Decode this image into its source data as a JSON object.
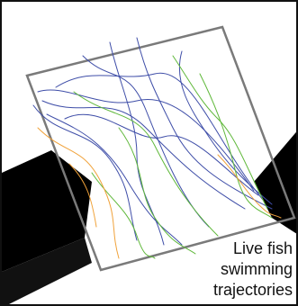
{
  "caption": {
    "line1": "Live fish",
    "line2": "swimming",
    "line3": "trajectories"
  },
  "colors": {
    "background": "#ffffff",
    "border": "#111111",
    "tank_outline": "#7a7a7a",
    "wall": "#000000",
    "trajectory_blue": "#3f4ea8",
    "trajectory_green": "#5fb83a",
    "trajectory_orange": "#f0a23a"
  }
}
